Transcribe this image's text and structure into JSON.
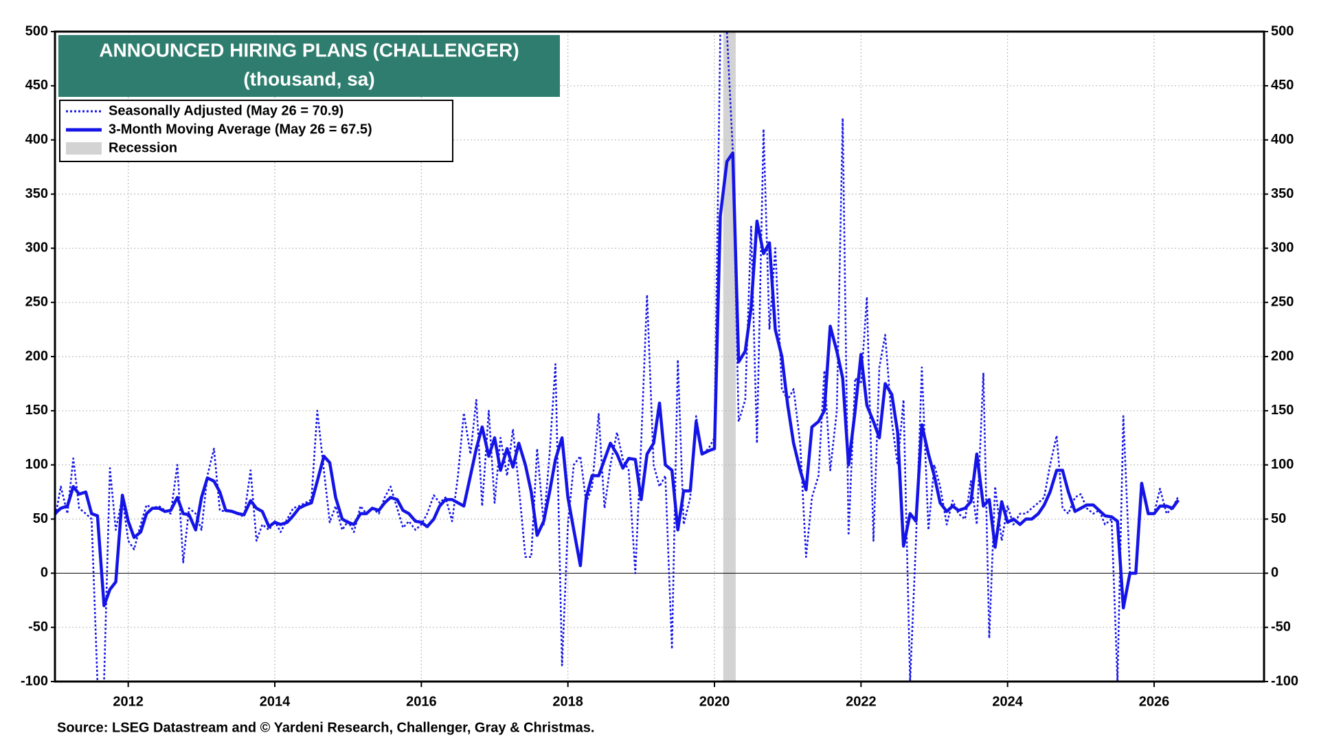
{
  "chart_data": {
    "type": "line",
    "title": "ANNOUNCED HIRING PLANS (CHALLENGER)",
    "subtitle": "(thousand, sa)",
    "source": "Source: LSEG Datastream and © Yardeni Research, Challenger, Gray & Christmas.",
    "x": [
      2011.0,
      2011.08,
      2011.17,
      2011.25,
      2011.33,
      2011.42,
      2011.5,
      2011.58,
      2011.67,
      2011.75,
      2011.83,
      2011.92,
      2012.0,
      2012.08,
      2012.17,
      2012.25,
      2012.33,
      2012.42,
      2012.5,
      2012.58,
      2012.67,
      2012.75,
      2012.83,
      2012.92,
      2013.0,
      2013.08,
      2013.17,
      2013.25,
      2013.33,
      2013.42,
      2013.5,
      2013.58,
      2013.67,
      2013.75,
      2013.83,
      2013.92,
      2014.0,
      2014.08,
      2014.17,
      2014.25,
      2014.33,
      2014.42,
      2014.5,
      2014.58,
      2014.67,
      2014.75,
      2014.83,
      2014.92,
      2015.0,
      2015.08,
      2015.17,
      2015.25,
      2015.33,
      2015.42,
      2015.5,
      2015.58,
      2015.67,
      2015.75,
      2015.83,
      2015.92,
      2016.0,
      2016.08,
      2016.17,
      2016.25,
      2016.33,
      2016.42,
      2016.5,
      2016.58,
      2016.67,
      2016.75,
      2016.83,
      2016.92,
      2017.0,
      2017.08,
      2017.17,
      2017.25,
      2017.33,
      2017.42,
      2017.5,
      2017.58,
      2017.67,
      2017.75,
      2017.83,
      2017.92,
      2018.0,
      2018.08,
      2018.17,
      2018.25,
      2018.33,
      2018.42,
      2018.5,
      2018.58,
      2018.67,
      2018.75,
      2018.83,
      2018.92,
      2019.0,
      2019.08,
      2019.17,
      2019.25,
      2019.33,
      2019.42,
      2019.5,
      2019.58,
      2019.67,
      2019.75,
      2019.83,
      2019.92,
      2020.0,
      2020.08,
      2020.17,
      2020.25,
      2020.33,
      2020.42,
      2020.5,
      2020.58,
      2020.67,
      2020.75,
      2020.83,
      2020.92,
      2021.0,
      2021.08,
      2021.17,
      2021.25,
      2021.33,
      2021.42,
      2021.5,
      2021.58,
      2021.67,
      2021.75,
      2021.83,
      2021.92,
      2022.0,
      2022.08,
      2022.17,
      2022.25,
      2022.33,
      2022.42,
      2022.5,
      2022.58,
      2022.67,
      2022.75,
      2022.83,
      2022.92,
      2023.0,
      2023.08,
      2023.17,
      2023.25,
      2023.33,
      2023.42,
      2023.5,
      2023.58,
      2023.67,
      2023.75,
      2023.83,
      2023.92,
      2024.0,
      2024.08,
      2024.17,
      2024.25,
      2024.33,
      2024.42,
      2024.5,
      2024.58,
      2024.67,
      2024.75,
      2024.83,
      2024.92,
      2025.0,
      2025.08,
      2025.17,
      2025.25,
      2025.33,
      2025.42,
      2025.5,
      2025.58,
      2025.67,
      2025.75,
      2025.83,
      2025.92,
      2026.0,
      2026.08,
      2026.17,
      2026.25,
      2026.33
    ],
    "series": [
      {
        "name": "Seasonally Adjusted (May 26 = 70.9)",
        "color": "#1414e6",
        "style": "dotted",
        "values": [
          50,
          80,
          55,
          106,
          60,
          55,
          50,
          -100,
          -100,
          97,
          40,
          70,
          30,
          22,
          45,
          63,
          60,
          62,
          58,
          55,
          100,
          10,
          60,
          55,
          40,
          90,
          115,
          58,
          57,
          58,
          55,
          52,
          95,
          30,
          45,
          40,
          48,
          38,
          50,
          60,
          62,
          65,
          68,
          150,
          95,
          47,
          62,
          40,
          48,
          38,
          62,
          55,
          60,
          55,
          70,
          80,
          60,
          42,
          48,
          40,
          45,
          55,
          72,
          65,
          70,
          48,
          90,
          148,
          110,
          160,
          62,
          150,
          65,
          125,
          90,
          133,
          80,
          15,
          15,
          115,
          45,
          110,
          193,
          -85,
          45,
          100,
          108,
          65,
          80,
          147,
          60,
          100,
          130,
          105,
          95,
          0,
          120,
          257,
          100,
          80,
          90,
          -70,
          197,
          45,
          70,
          145,
          110,
          115,
          125,
          500,
          500,
          390,
          140,
          160,
          320,
          120,
          410,
          225,
          300,
          170,
          160,
          170,
          120,
          15,
          70,
          90,
          187,
          95,
          150,
          420,
          35,
          180,
          175,
          255,
          30,
          190,
          220,
          140,
          100,
          160,
          -100,
          30,
          190,
          40,
          100,
          80,
          45,
          67,
          55,
          50,
          85,
          45,
          185,
          -60,
          80,
          30,
          62,
          45,
          55,
          55,
          60,
          65,
          70,
          100,
          127,
          60,
          55,
          70,
          73,
          60,
          55,
          58,
          45,
          50,
          -100,
          145,
          0,
          0,
          80,
          55,
          55,
          78,
          55,
          60,
          70.9
        ]
      },
      {
        "name": "3-Month Moving Average (May 26 = 67.5)",
        "color": "#1414e6",
        "style": "solid",
        "values": [
          55,
          60,
          62,
          80,
          73,
          75,
          55,
          53,
          -30,
          -15,
          -8,
          72,
          48,
          33,
          38,
          55,
          60,
          60,
          57,
          58,
          70,
          55,
          54,
          40,
          70,
          88,
          85,
          75,
          58,
          57,
          55,
          54,
          67,
          60,
          57,
          43,
          47,
          45,
          47,
          53,
          60,
          63,
          65,
          85,
          108,
          102,
          70,
          50,
          47,
          45,
          55,
          55,
          60,
          58,
          65,
          70,
          68,
          58,
          55,
          48,
          47,
          43,
          50,
          62,
          68,
          68,
          65,
          62,
          90,
          115,
          135,
          108,
          125,
          95,
          115,
          98,
          120,
          100,
          75,
          35,
          48,
          75,
          105,
          125,
          70,
          40,
          7,
          70,
          90,
          90,
          105,
          120,
          110,
          97,
          106,
          105,
          68,
          110,
          120,
          157,
          100,
          95,
          40,
          76,
          76,
          140,
          110,
          113,
          115,
          330,
          380,
          388,
          195,
          205,
          245,
          325,
          295,
          305,
          225,
          200,
          155,
          120,
          95,
          77,
          135,
          140,
          150,
          228,
          205,
          180,
          100,
          150,
          202,
          155,
          140,
          125,
          175,
          165,
          130,
          25,
          55,
          48,
          137,
          110,
          90,
          65,
          57,
          62,
          58,
          60,
          66,
          110,
          62,
          68,
          24,
          66,
          47,
          50,
          45,
          50,
          50,
          55,
          63,
          75,
          95,
          95,
          75,
          57,
          60,
          63,
          63,
          58,
          53,
          52,
          48,
          -32,
          0,
          0,
          83,
          55,
          55,
          62,
          62,
          60,
          67.5
        ]
      }
    ],
    "recession": {
      "name": "Recession",
      "color": "#d3d3d3",
      "x": [
        2020.12,
        2020.29
      ]
    },
    "xlim": [
      2011,
      2027.5
    ],
    "xticks": [
      2012,
      2014,
      2016,
      2018,
      2020,
      2022,
      2024,
      2026
    ],
    "ylim": [
      -100,
      500
    ],
    "yticks": [
      -100,
      -50,
      0,
      50,
      100,
      150,
      200,
      250,
      300,
      350,
      400,
      450,
      500
    ],
    "y2lim": [
      -100,
      500
    ],
    "y2ticks": [
      -100,
      -50,
      0,
      50,
      100,
      150,
      200,
      250,
      300,
      350,
      400,
      450,
      500
    ],
    "grid": true,
    "legend": "upper left"
  }
}
